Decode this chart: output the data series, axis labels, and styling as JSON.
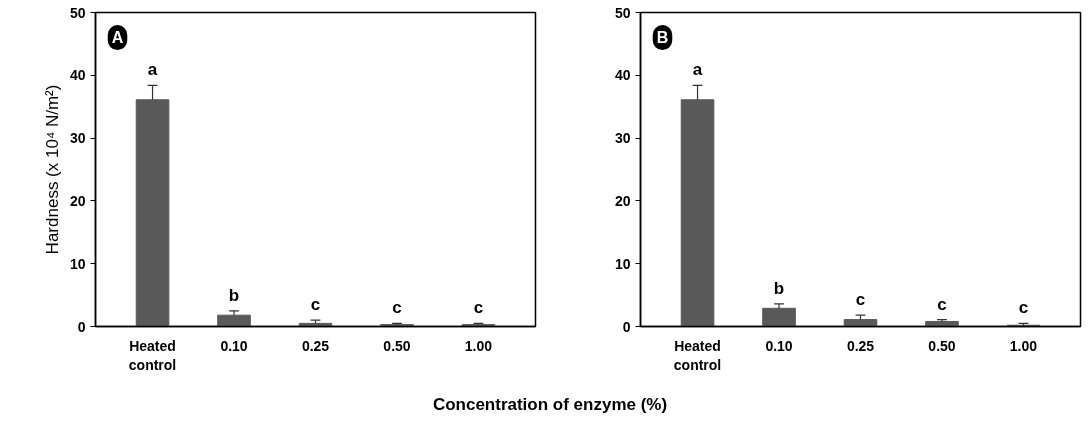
{
  "chart_data": [
    {
      "type": "bar",
      "ylabel": "Hardness (x 10⁴ N/m²)",
      "xlabel": "Concentration of enzyme (%)",
      "categories": [
        "Heated control",
        "0.10",
        "0.25",
        "0.50",
        "1.00"
      ],
      "values": [
        36.1,
        1.8,
        0.5,
        0.3,
        0.3
      ],
      "color": "#595959",
      "errors": [
        [
          36.1,
          38.4
        ],
        [
          1.8,
          2.5
        ],
        [
          0.5,
          1.0
        ],
        [
          0.3,
          0.5
        ],
        [
          0.3,
          0.5
        ]
      ],
      "value_labels": [
        "a",
        "b",
        "c",
        "c",
        "c"
      ],
      "ylim": [
        0,
        50
      ],
      "yticks": [
        0,
        10,
        20,
        30,
        40,
        50
      ],
      "grid": false,
      "annotations": [
        "A"
      ]
    },
    {
      "type": "bar",
      "categories": [
        "Heated control",
        "0.10",
        "0.25",
        "0.50",
        "1.00"
      ],
      "values": [
        36.1,
        2.9,
        1.1,
        0.8,
        0.2
      ],
      "color": "#595959",
      "errors": [
        [
          36.1,
          38.4
        ],
        [
          2.9,
          3.6
        ],
        [
          1.1,
          1.8
        ],
        [
          0.8,
          1.1
        ],
        [
          0.2,
          0.5
        ]
      ],
      "value_labels": [
        "a",
        "b",
        "c",
        "c",
        "c"
      ],
      "ylim": [
        0,
        50
      ],
      "yticks": [
        0,
        10,
        20,
        30,
        40,
        50
      ],
      "grid": false,
      "annotations": [
        "B"
      ]
    }
  ]
}
